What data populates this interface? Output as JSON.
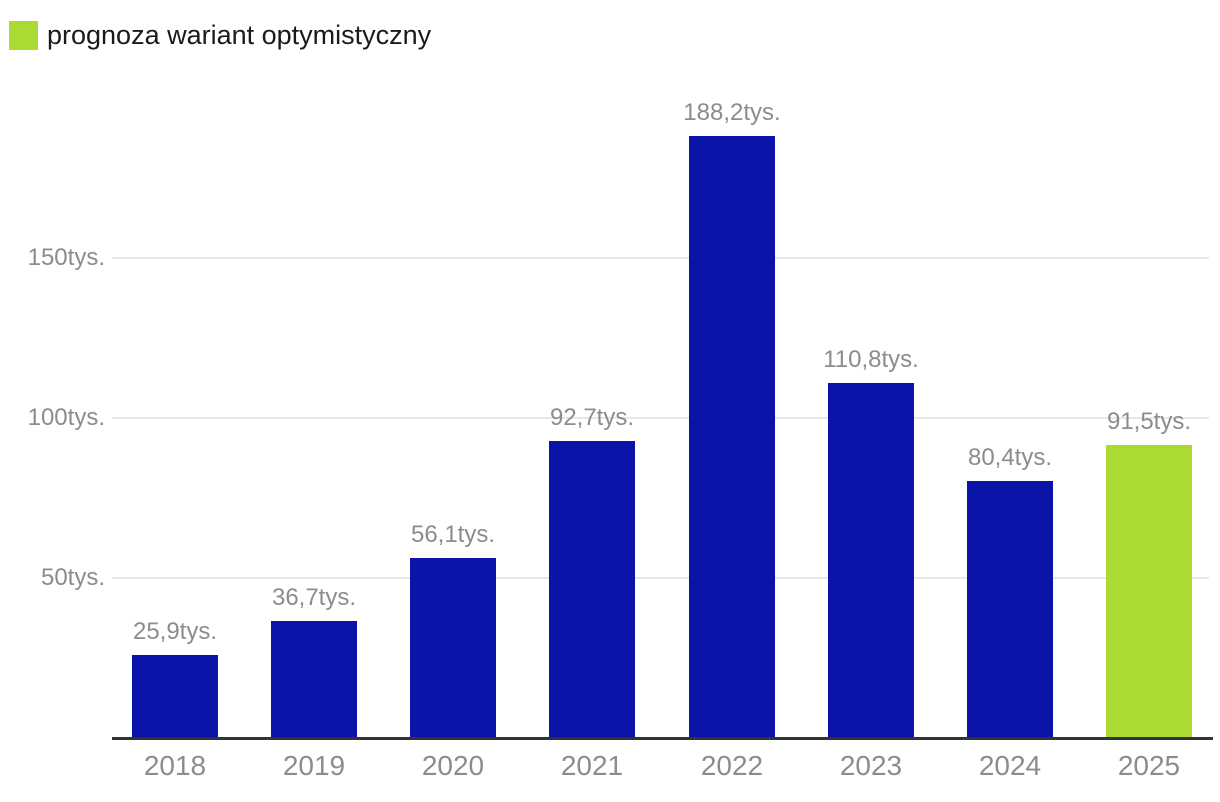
{
  "legend": {
    "label": "prognoza wariant optymistyczny",
    "swatch_color": "#abdb33"
  },
  "colors": {
    "bar_default": "#0b14a8",
    "bar_forecast": "#abdb33",
    "gridline": "#e7e7e7",
    "axis_line": "#333333",
    "tick_label": "#8c8c8c",
    "value_label": "#8c8c8c",
    "legend_text": "#1a1a1a",
    "background": "#ffffff"
  },
  "chart_data": {
    "type": "bar",
    "title": "",
    "xlabel": "",
    "ylabel": "",
    "unit": "tys.",
    "categories": [
      "2018",
      "2019",
      "2020",
      "2021",
      "2022",
      "2023",
      "2024",
      "2025"
    ],
    "values": [
      25.9,
      36.7,
      56.1,
      92.7,
      188.2,
      110.8,
      80.4,
      91.5
    ],
    "bar_labels": [
      "25,9tys.",
      "36,7tys.",
      "56,1tys.",
      "92,7tys.",
      "188,2tys.",
      "110,8tys.",
      "80,4tys.",
      "91,5tys."
    ],
    "forecast_index": 7,
    "yticks": [
      {
        "value": 50,
        "label": "50tys."
      },
      {
        "value": 100,
        "label": "100tys."
      },
      {
        "value": 150,
        "label": "150tys."
      }
    ],
    "ylim": [
      0,
      200
    ],
    "grid": true,
    "legend_position": "top-left",
    "legend_entries": [
      "prognoza wariant optymistyczny"
    ]
  }
}
